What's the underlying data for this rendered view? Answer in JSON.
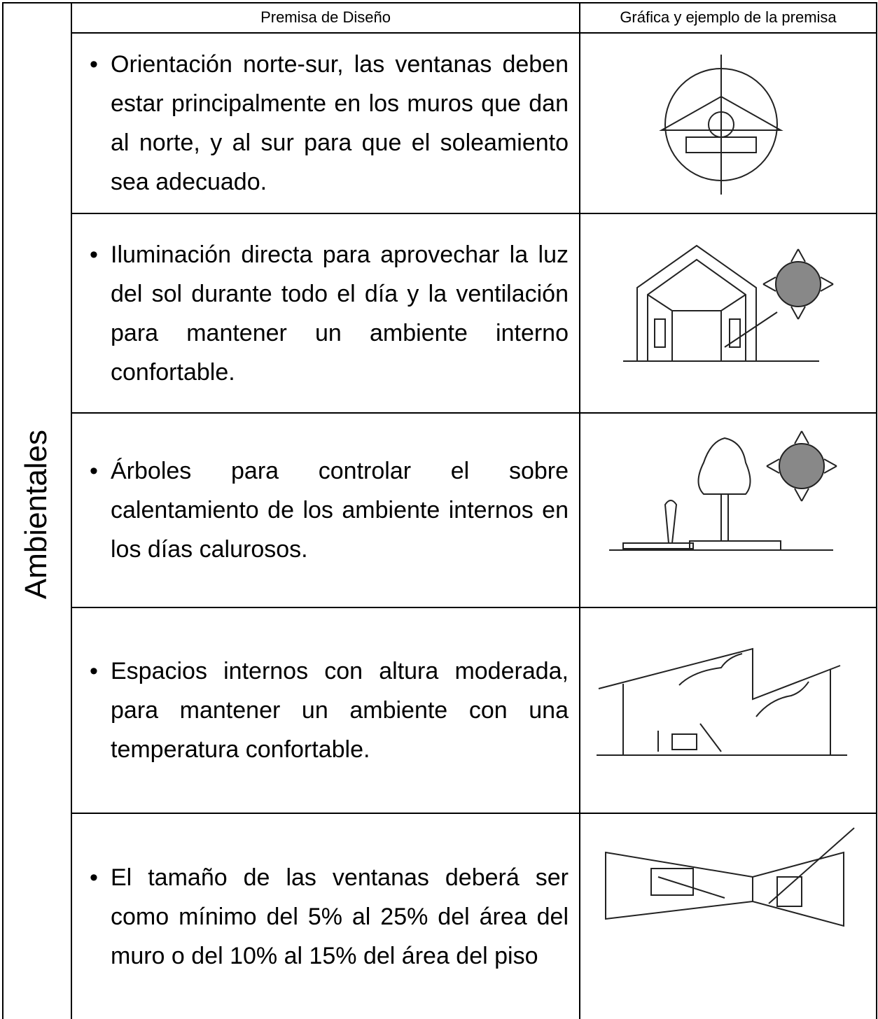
{
  "header": {
    "columns": [
      "Premisa de Diseño",
      "Gráfica y ejemplo de la premisa"
    ]
  },
  "section": "Ambientales",
  "rows": [
    {
      "text": "Orientación norte-sur, las ventanas deben estar principalmente en los muros que dan al norte, y al sur para que el soleamiento sea adecuado."
    },
    {
      "text": "Iluminación directa para aprovechar la luz del sol durante todo el día y la ventilación para mantener un ambiente interno confortable."
    },
    {
      "text": "Árboles para controlar el sobre calentamiento de los ambiente internos en los días calurosos."
    },
    {
      "text": "Espacios internos con altura moderada, para mantener un ambiente con una temperatura confortable."
    },
    {
      "text": "El tamaño de las ventanas deberá ser como mínimo del 5% al 25% del área del muro o del 10% al 15% del área del piso"
    }
  ]
}
